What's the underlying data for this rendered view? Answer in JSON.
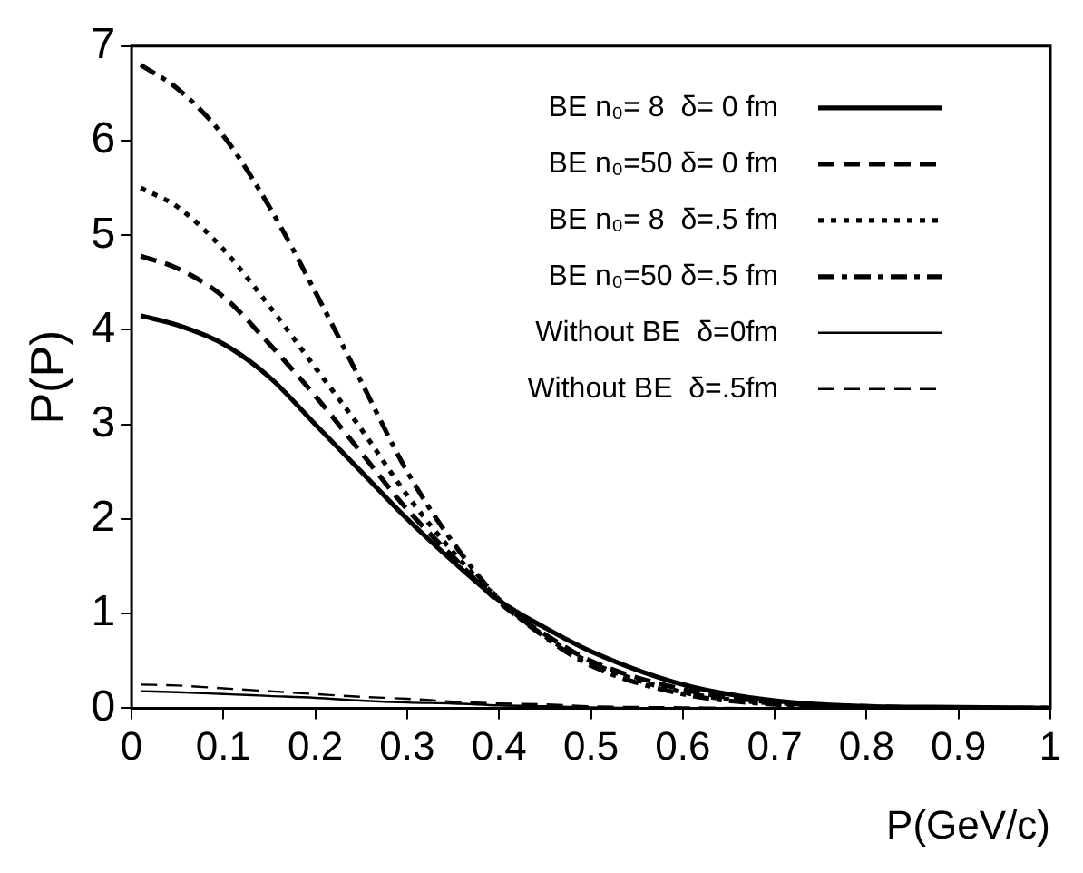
{
  "chart_data": {
    "type": "line",
    "xlabel": "P(GeV/c)",
    "ylabel": "P(P)",
    "x": [
      0.01,
      0.05,
      0.1,
      0.15,
      0.2,
      0.25,
      0.3,
      0.35,
      0.4,
      0.45,
      0.5,
      0.6,
      0.7,
      0.8,
      0.9,
      1
    ],
    "xlim": [
      0,
      1
    ],
    "xticks": [
      0,
      0.1,
      0.2,
      0.3,
      0.4,
      0.5,
      0.6,
      0.7,
      0.8,
      0.9,
      1
    ],
    "ylim": [
      0,
      7
    ],
    "yticks": [
      0,
      1,
      2,
      3,
      4,
      5,
      6,
      7
    ],
    "grid": false,
    "legend": "top right",
    "marker": "none",
    "series": [
      {
        "name": "BE n₀= 8  δ= 0 fm",
        "color": "#000000",
        "line_style": "solid",
        "values": [
          4.15,
          4.05,
          3.85,
          3.5,
          3.0,
          2.5,
          2.0,
          1.55,
          1.14,
          0.85,
          0.6,
          0.25,
          0.08,
          0.02,
          0.01,
          0
        ]
      },
      {
        "name": "BE n₀=50 δ= 0 fm",
        "color": "#000000",
        "line_style": "dashed",
        "values": [
          4.78,
          4.65,
          4.35,
          3.85,
          3.3,
          2.7,
          2.1,
          1.6,
          1.12,
          0.78,
          0.5,
          0.2,
          0.06,
          0.02,
          0,
          0
        ]
      },
      {
        "name": "BE n₀= 8  δ=.5 fm",
        "color": "#000000",
        "line_style": "dotted",
        "values": [
          5.5,
          5.3,
          4.85,
          4.25,
          3.6,
          2.95,
          2.25,
          1.65,
          1.15,
          0.76,
          0.48,
          0.17,
          0.05,
          0.01,
          0,
          0
        ]
      },
      {
        "name": "BE n₀=50 δ=.5 fm",
        "color": "#000000",
        "line_style": "dashdot",
        "values": [
          6.8,
          6.55,
          6.05,
          5.3,
          4.4,
          3.45,
          2.5,
          1.75,
          1.15,
          0.75,
          0.45,
          0.15,
          0.04,
          0.01,
          0,
          0
        ]
      },
      {
        "name": "Without BE  δ=0fm",
        "color": "#000000",
        "line_style": "solid",
        "values": [
          0.18,
          0.17,
          0.15,
          0.13,
          0.11,
          0.08,
          0.06,
          0.05,
          0.03,
          0.02,
          0.01,
          0,
          0,
          0,
          0,
          0
        ]
      },
      {
        "name": "Without BE  δ=.5fm",
        "color": "#000000",
        "line_style": "dashed",
        "values": [
          0.25,
          0.24,
          0.21,
          0.18,
          0.15,
          0.12,
          0.1,
          0.07,
          0.05,
          0.04,
          0.02,
          0.01,
          0,
          0,
          0,
          0
        ]
      }
    ]
  }
}
